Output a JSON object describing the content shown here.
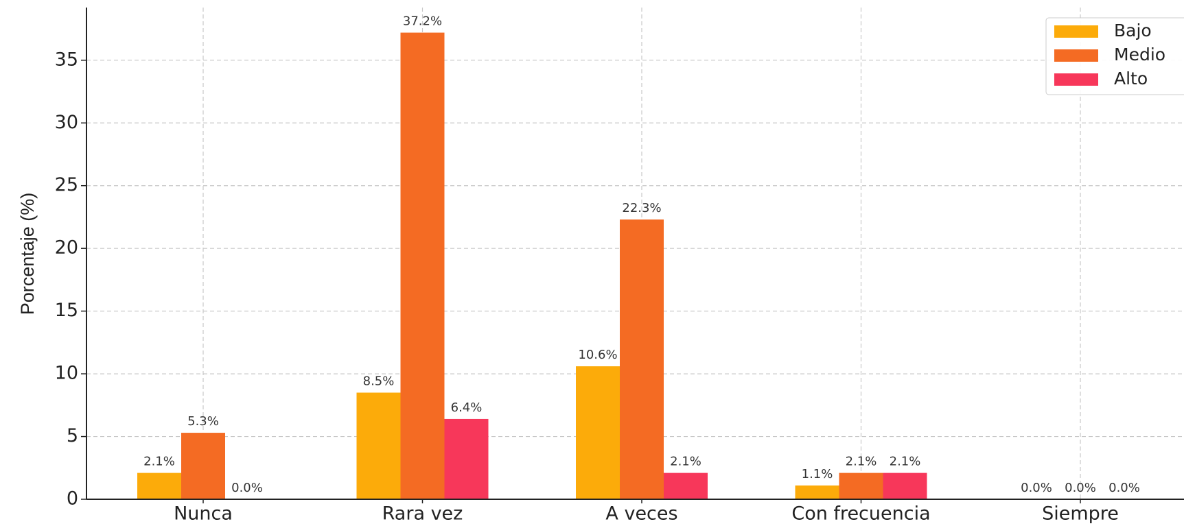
{
  "chart_data": {
    "type": "bar",
    "y_label": "Porcentaje (%)",
    "categories": [
      "Nunca",
      "Rara vez",
      "A veces",
      "Con frecuencia",
      "Siempre"
    ],
    "series": [
      {
        "name": "Bajo",
        "color": "#fcab0a",
        "values": [
          2.1,
          8.5,
          10.6,
          1.1,
          0.0
        ],
        "value_labels": [
          "2.1%",
          "8.5%",
          "10.6%",
          "1.1%",
          "0.0%"
        ]
      },
      {
        "name": "Medio",
        "color": "#f46b23",
        "values": [
          5.3,
          37.2,
          22.3,
          2.1,
          0.0
        ],
        "value_labels": [
          "5.3%",
          "37.2%",
          "22.3%",
          "2.1%",
          "0.0%"
        ]
      },
      {
        "name": "Alto",
        "color": "#f7375a",
        "values": [
          0.0,
          6.4,
          2.1,
          2.1,
          0.0
        ],
        "value_labels": [
          "0.0%",
          "6.4%",
          "2.1%",
          "2.1%",
          "0.0%"
        ]
      }
    ],
    "ylim": [
      0,
      39.2
    ],
    "yticks": [
      0,
      5,
      10,
      15,
      20,
      25,
      30,
      35
    ],
    "grid": true,
    "legend": "upper right"
  }
}
